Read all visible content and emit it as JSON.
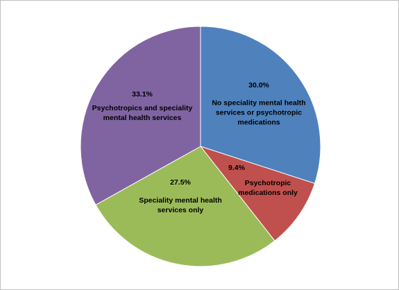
{
  "chart_data": {
    "type": "pie",
    "categories": [
      "No speciality mental health services or psychotropic medications",
      "Psychotropic medications only",
      "Speciality mental health services only",
      "Psychotropics and speciality mental health services"
    ],
    "values": [
      30.0,
      9.4,
      27.5,
      33.1
    ],
    "value_labels": [
      "30.0%",
      "9.4%",
      "27.5%",
      "33.1%"
    ],
    "colors": [
      "#4f81bd",
      "#c0504d",
      "#9bbb59",
      "#8064a2"
    ]
  }
}
